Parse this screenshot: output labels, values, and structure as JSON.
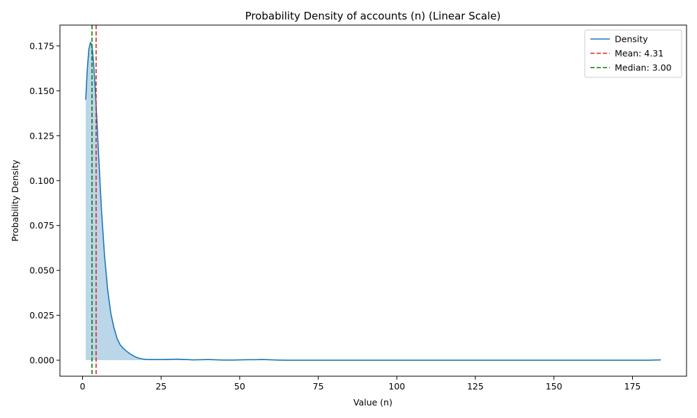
{
  "chart_data": {
    "type": "area",
    "title": "Probability Density of accounts (n) (Linear Scale)",
    "xlabel": "Value (n)",
    "ylabel": "Probability Density",
    "xlim": [
      -7.2,
      192.2
    ],
    "ylim": [
      -0.0089,
      0.1866
    ],
    "x_ticks": [
      0,
      25,
      50,
      75,
      100,
      125,
      150,
      175
    ],
    "x_tick_labels": [
      "0",
      "25",
      "50",
      "75",
      "100",
      "125",
      "150",
      "175"
    ],
    "y_ticks": [
      0.0,
      0.025,
      0.05,
      0.075,
      0.1,
      0.125,
      0.15,
      0.175
    ],
    "y_tick_labels": [
      "0.000",
      "0.025",
      "0.050",
      "0.075",
      "0.100",
      "0.125",
      "0.150",
      "0.175"
    ],
    "grid": false,
    "legend_position": "top-right",
    "series": [
      {
        "name": "Density",
        "color": "#1f77b4",
        "fill_color": "#1f77b4",
        "x": [
          1,
          1.5,
          2,
          2.5,
          3,
          3.5,
          4,
          4.5,
          5,
          6,
          7,
          8,
          9,
          10,
          11,
          12,
          13,
          14,
          15,
          16,
          17,
          18,
          19,
          20,
          21,
          22,
          23,
          25,
          28,
          30,
          33,
          35,
          38,
          40,
          43,
          45,
          48,
          50,
          53,
          55,
          57,
          59,
          62,
          65,
          70,
          80,
          100,
          120,
          140,
          160,
          175,
          180,
          184
        ],
        "y": [
          0.145,
          0.162,
          0.173,
          0.177,
          0.175,
          0.166,
          0.152,
          0.136,
          0.118,
          0.084,
          0.058,
          0.039,
          0.026,
          0.018,
          0.012,
          0.0085,
          0.0065,
          0.005,
          0.0037,
          0.0026,
          0.0017,
          0.0011,
          0.0007,
          0.0005,
          0.0004,
          0.0004,
          0.0004,
          0.0004,
          0.0005,
          0.0006,
          0.0004,
          0.0002,
          0.0003,
          0.0004,
          0.0002,
          0.0001,
          0.0001,
          0.0002,
          0.0003,
          0.0003,
          0.0004,
          0.0003,
          0.0001,
          0.0,
          0.0,
          0.0,
          0.0,
          0.0,
          0.0,
          0.0,
          0.0,
          0.0,
          0.0002
        ]
      }
    ],
    "reference_lines": [
      {
        "name": "Mean: 4.31",
        "x": 4.31,
        "color": "#d62728",
        "style": "dashed"
      },
      {
        "name": "Median: 3.00",
        "x": 3.0,
        "color": "#008000",
        "style": "dashed"
      }
    ]
  }
}
